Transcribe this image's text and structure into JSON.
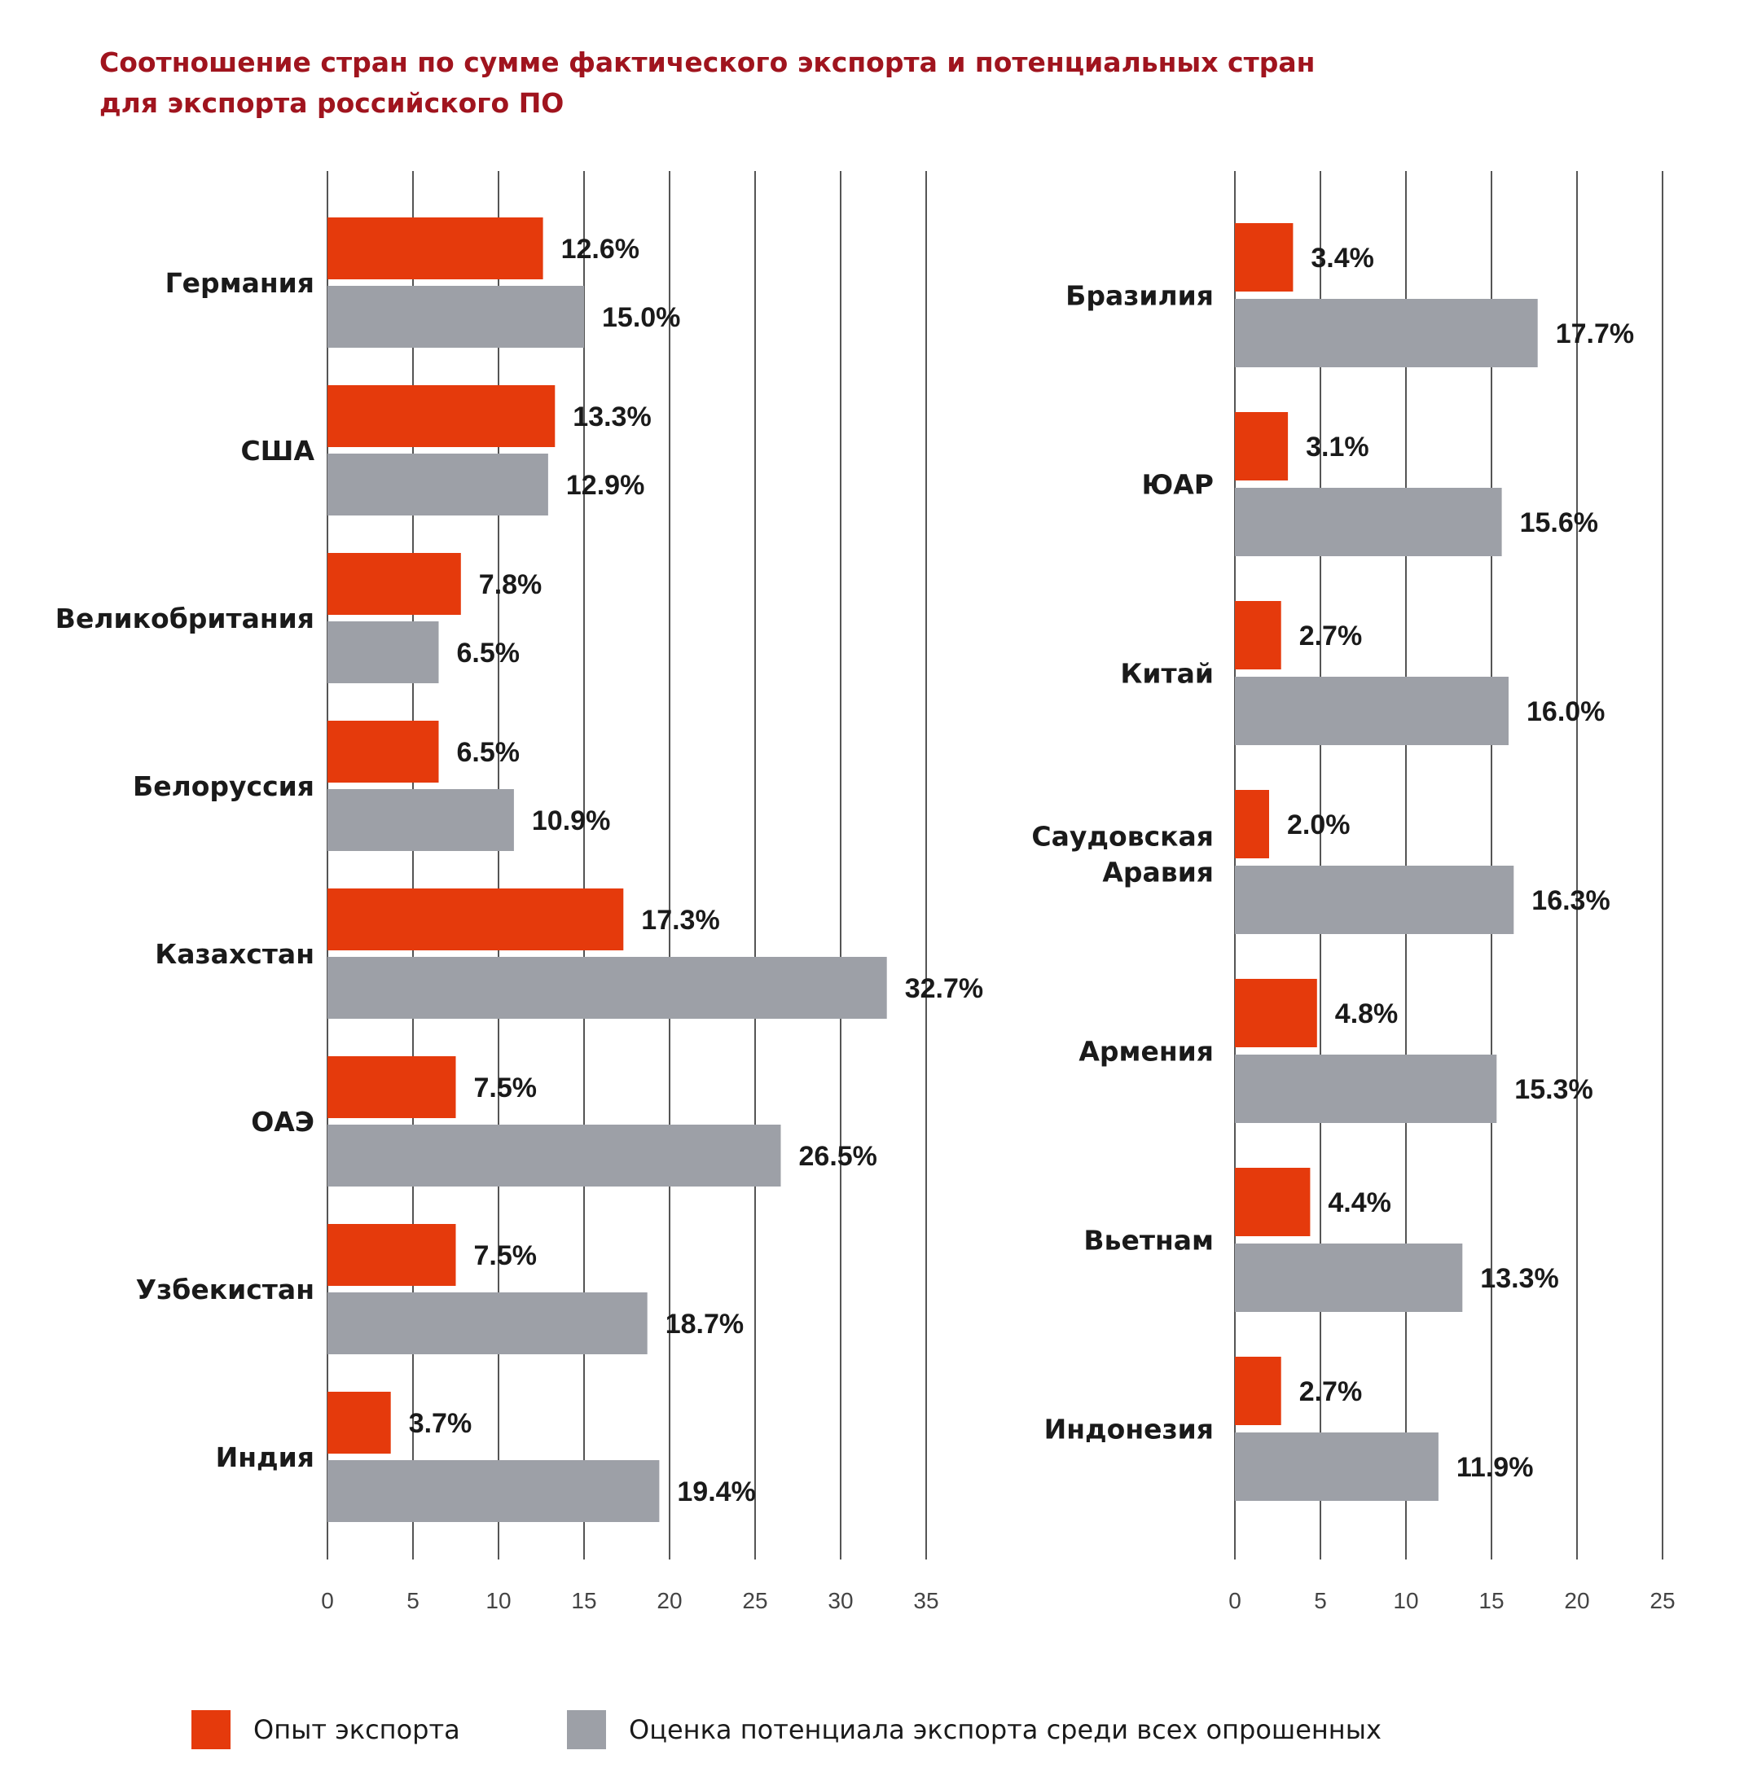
{
  "title_lines": [
    "Соотношение стран по сумме фактического экспорта и потенциальных стран",
    "для экспорта российского ПО"
  ],
  "colors": {
    "actual": "#e53a0c",
    "potential": "#9da0a7",
    "grid": "#555555",
    "title": "#a0141e"
  },
  "legend": [
    {
      "label": "Опыт экспорта",
      "color": "#e53a0c"
    },
    {
      "label": "Оценка потенциала экспорта среди всех опрошенных",
      "color": "#9da0a7"
    }
  ],
  "chart_data": [
    {
      "type": "bar",
      "orientation": "horizontal",
      "categories": [
        "Германия",
        "США",
        "Великобритания",
        "Белоруссия",
        "Казахстан",
        "ОАЭ",
        "Узбекистан",
        "Индия"
      ],
      "series": [
        {
          "name": "Опыт экспорта",
          "values": [
            12.6,
            13.3,
            7.8,
            6.5,
            17.3,
            7.5,
            7.5,
            3.7
          ],
          "labels": [
            "12.6%",
            "13.3%",
            "7.8%",
            "6.5%",
            "17.3%",
            "7.5%",
            "7.5%",
            "3.7%"
          ]
        },
        {
          "name": "Оценка потенциала экспорта среди всех опрошенных",
          "values": [
            15.0,
            12.9,
            6.5,
            10.9,
            32.7,
            26.5,
            18.7,
            19.4
          ],
          "labels": [
            "15.0%",
            "12.9%",
            "6.5%",
            "10.9%",
            "32.7%",
            "26.5%",
            "18.7%",
            "19.4%"
          ]
        }
      ],
      "xlim": [
        0,
        35
      ],
      "ticks": [
        0,
        5,
        10,
        15,
        20,
        25,
        30,
        35
      ],
      "tick_labels": [
        "0",
        "5",
        "10",
        "15",
        "20",
        "25",
        "30",
        "35"
      ],
      "grid": true,
      "legend": "bottom"
    },
    {
      "type": "bar",
      "orientation": "horizontal",
      "categories": [
        "Бразилия",
        "ЮАР",
        "Китай",
        [
          "Саудовская",
          "Аравия"
        ],
        "Армения",
        "Вьетнам",
        "Индонезия"
      ],
      "series": [
        {
          "name": "Опыт экспорта",
          "values": [
            3.4,
            3.1,
            2.7,
            2.0,
            4.8,
            4.4,
            2.7
          ],
          "labels": [
            "3.4%",
            "3.1%",
            "2.7%",
            "2.0%",
            "4.8%",
            "4.4%",
            "2.7%"
          ]
        },
        {
          "name": "Оценка потенциала экспорта среди всех опрошенных",
          "values": [
            17.7,
            15.6,
            16.0,
            16.3,
            15.3,
            13.3,
            11.9
          ],
          "labels": [
            "17.7%",
            "15.6%",
            "16.0%",
            "16.3%",
            "15.3%",
            "13.3%",
            "11.9%"
          ]
        }
      ],
      "xlim": [
        0,
        25
      ],
      "ticks": [
        0,
        5,
        10,
        15,
        20,
        25
      ],
      "tick_labels": [
        "0",
        "5",
        "10",
        "15",
        "20",
        "25"
      ],
      "grid": true,
      "legend": "bottom"
    }
  ]
}
